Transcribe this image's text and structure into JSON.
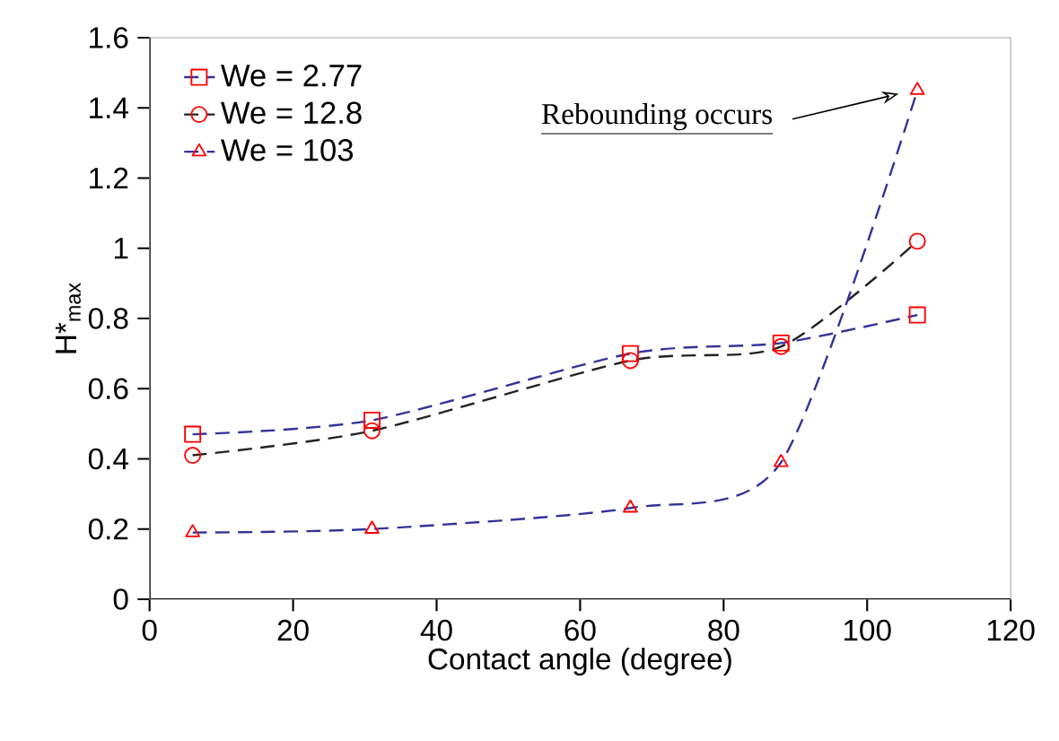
{
  "chart_data": {
    "type": "line",
    "xlabel": "Contact angle (degree)",
    "ylabel": "H*$_{max}$",
    "x": [
      6,
      31,
      67,
      88,
      107
    ],
    "series": [
      {
        "name": "We = 2.77",
        "color": "#333399",
        "marker": "square",
        "values": [
          0.47,
          0.51,
          0.7,
          0.73,
          0.81
        ]
      },
      {
        "name": "We = 12.8",
        "color": "#222222",
        "marker": "circle",
        "values": [
          0.41,
          0.48,
          0.68,
          0.72,
          1.02
        ]
      },
      {
        "name": "We = 103",
        "color": "#333399",
        "marker": "triangle",
        "values": [
          0.19,
          0.2,
          0.26,
          0.39,
          1.45
        ]
      }
    ],
    "xlim": [
      0,
      120
    ],
    "xticks": [
      0,
      20,
      40,
      60,
      80,
      100,
      120
    ],
    "ylim": [
      0,
      1.6
    ],
    "yticks": [
      0,
      0.2,
      0.4,
      0.6,
      0.8,
      1,
      1.2,
      1.4,
      1.6
    ],
    "annotations": [
      "Rebounding occurs"
    ],
    "legend": "top left",
    "line_style": "dashed",
    "grid": false
  }
}
